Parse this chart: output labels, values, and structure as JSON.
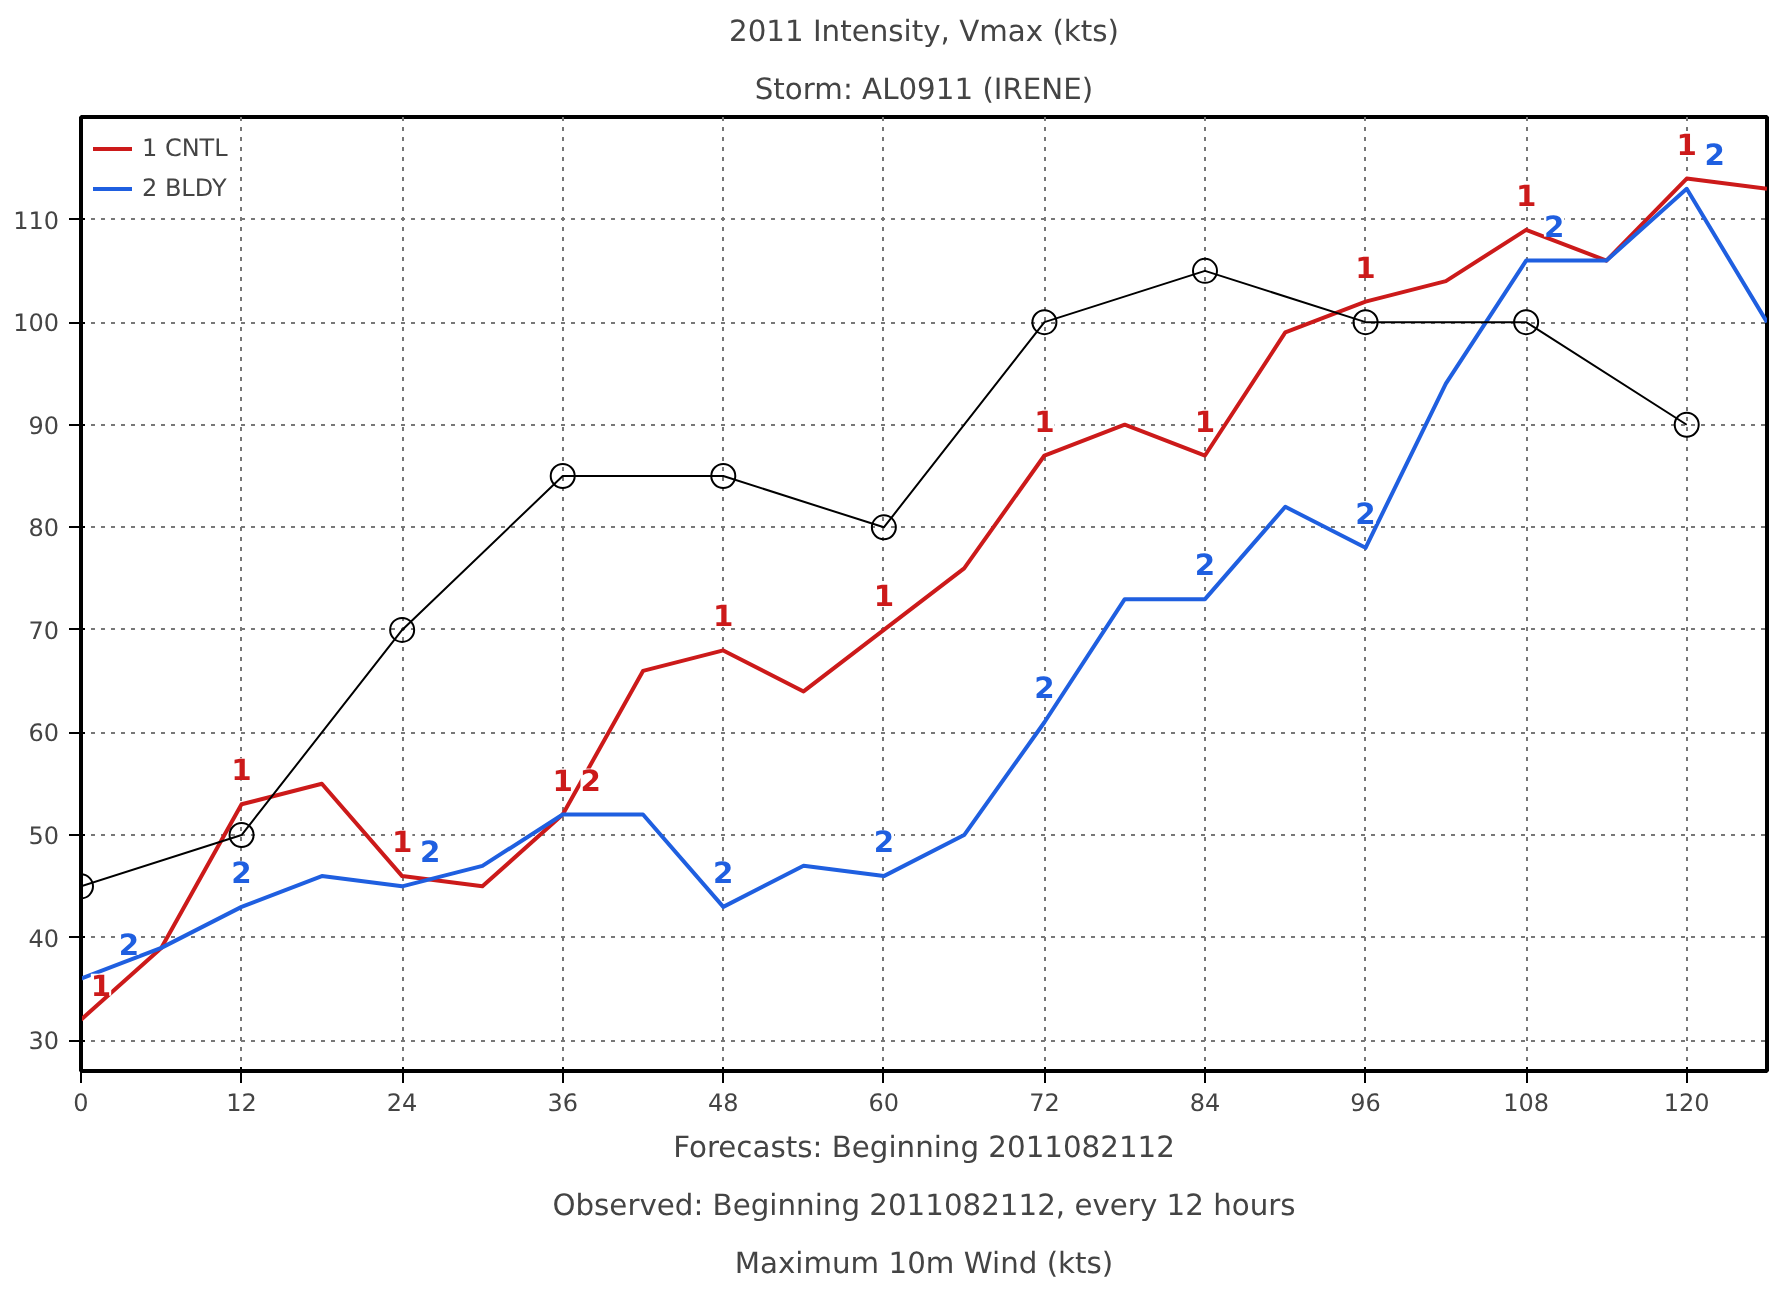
{
  "chart_data": {
    "type": "line",
    "title": "2011 Intensity, Vmax (kts)",
    "subtitle": "Storm: AL0911 (IRENE)",
    "xlabel": "Forecasts: Beginning 2011082112",
    "annotations": [
      "Observed: Beginning 2011082112, every 12 hours",
      "Maximum 10m Wind (kts)",
      {
        "text": "1",
        "x": 0,
        "y": 32
      },
      {
        "text": "1",
        "x": 12,
        "y": 53
      },
      {
        "text": "1",
        "x": 24,
        "y": 46
      },
      {
        "text": "1",
        "x": 36,
        "y": 52
      },
      {
        "text": "1",
        "x": 48,
        "y": 68
      },
      {
        "text": "1",
        "x": 60,
        "y": 70
      },
      {
        "text": "1",
        "x": 72,
        "y": 87
      },
      {
        "text": "1",
        "x": 84,
        "y": 87
      },
      {
        "text": "1",
        "x": 96,
        "y": 102
      },
      {
        "text": "1",
        "x": 108,
        "y": 109
      },
      {
        "text": "1",
        "x": 120,
        "y": 114
      },
      {
        "text": "2",
        "x": 0,
        "y": 36
      },
      {
        "text": "2",
        "x": 12,
        "y": 43
      },
      {
        "text": "2",
        "x": 24,
        "y": 45
      },
      {
        "text": "2",
        "x": 36,
        "y": 52
      },
      {
        "text": "2",
        "x": 48,
        "y": 43
      },
      {
        "text": "2",
        "x": 60,
        "y": 46
      },
      {
        "text": "2",
        "x": 72,
        "y": 61
      },
      {
        "text": "2",
        "x": 84,
        "y": 73
      },
      {
        "text": "2",
        "x": 96,
        "y": 78
      },
      {
        "text": "2",
        "x": 108,
        "y": 106
      },
      {
        "text": "2",
        "x": 120,
        "y": 113
      }
    ],
    "series": [
      {
        "name": "1 CNTL",
        "color": "#cc1a1a",
        "x": [
          0,
          6,
          12,
          18,
          24,
          30,
          36,
          42,
          48,
          54,
          60,
          66,
          72,
          78,
          84,
          90,
          96,
          102,
          108,
          114,
          120,
          126
        ],
        "values": [
          32,
          39,
          53,
          55,
          46,
          45,
          52,
          66,
          68,
          64,
          70,
          76,
          87,
          90,
          87,
          99,
          102,
          104,
          109,
          106,
          114,
          113
        ]
      },
      {
        "name": "2 BLDY",
        "color": "#1f5fe0",
        "x": [
          0,
          6,
          12,
          18,
          24,
          30,
          36,
          42,
          48,
          54,
          60,
          66,
          72,
          78,
          84,
          90,
          96,
          102,
          108,
          114,
          120,
          126
        ],
        "values": [
          36,
          39,
          43,
          46,
          45,
          47,
          52,
          52,
          43,
          47,
          46,
          50,
          61,
          73,
          73,
          82,
          78,
          94,
          106,
          106,
          113,
          100
        ]
      },
      {
        "color": "#000000",
        "marker": "circle",
        "x": [
          0,
          12,
          24,
          36,
          48,
          60,
          72,
          84,
          96,
          108,
          120
        ],
        "values": [
          45,
          50,
          70,
          85,
          85,
          80,
          100,
          105,
          100,
          100,
          90
        ]
      }
    ],
    "xlim": [
      0,
      126
    ],
    "ylim": [
      27,
      120
    ],
    "xticks": [
      0,
      12,
      24,
      36,
      48,
      60,
      72,
      84,
      96,
      108,
      120
    ],
    "yticks": [
      30,
      40,
      50,
      60,
      70,
      80,
      90,
      100,
      110
    ],
    "grid": true,
    "legend": "top left"
  }
}
